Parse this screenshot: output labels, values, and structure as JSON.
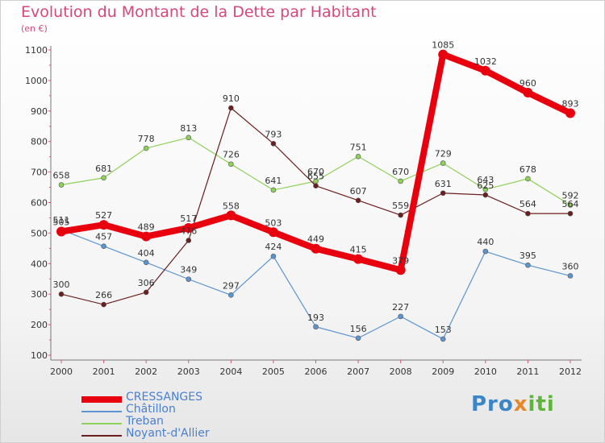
{
  "title": "Evolution du Montant de la Dette par Habitant",
  "subtitle": "(en €)",
  "brand": {
    "p1": "Pro",
    "p2": "x",
    "p3": "iti"
  },
  "chart_data": {
    "type": "line",
    "title": "Evolution du Montant de la Dette par Habitant",
    "subtitle": "(en €)",
    "xlabel": "",
    "ylabel": "",
    "x": [
      "2000",
      "2001",
      "2002",
      "2003",
      "2004",
      "2005",
      "2006",
      "2007",
      "2008",
      "2009",
      "2010",
      "2011",
      "2012"
    ],
    "ylim": [
      100,
      1100
    ],
    "yticks": [
      100,
      200,
      300,
      400,
      500,
      600,
      700,
      800,
      900,
      1000,
      1100
    ],
    "grid": false,
    "legend_position": "bottom-left",
    "series": [
      {
        "name": "CRESSANGES",
        "color": "#e8000e",
        "values": [
          505,
          527,
          489,
          517,
          558,
          503,
          449,
          415,
          379,
          1085,
          1032,
          960,
          893
        ]
      },
      {
        "name": "Châtillon",
        "color": "#5b94cf",
        "values": [
          511,
          457,
          404,
          349,
          297,
          424,
          193,
          156,
          227,
          153,
          440,
          395,
          360
        ]
      },
      {
        "name": "Treban",
        "color": "#8ed05a",
        "values": [
          658,
          681,
          778,
          813,
          726,
          641,
          670,
          751,
          670,
          729,
          643,
          678,
          592
        ]
      },
      {
        "name": "Noyant-d'Allier",
        "color": "#6b1e1e",
        "values": [
          300,
          266,
          306,
          476,
          910,
          793,
          655,
          607,
          559,
          631,
          625,
          564,
          564
        ]
      }
    ]
  }
}
